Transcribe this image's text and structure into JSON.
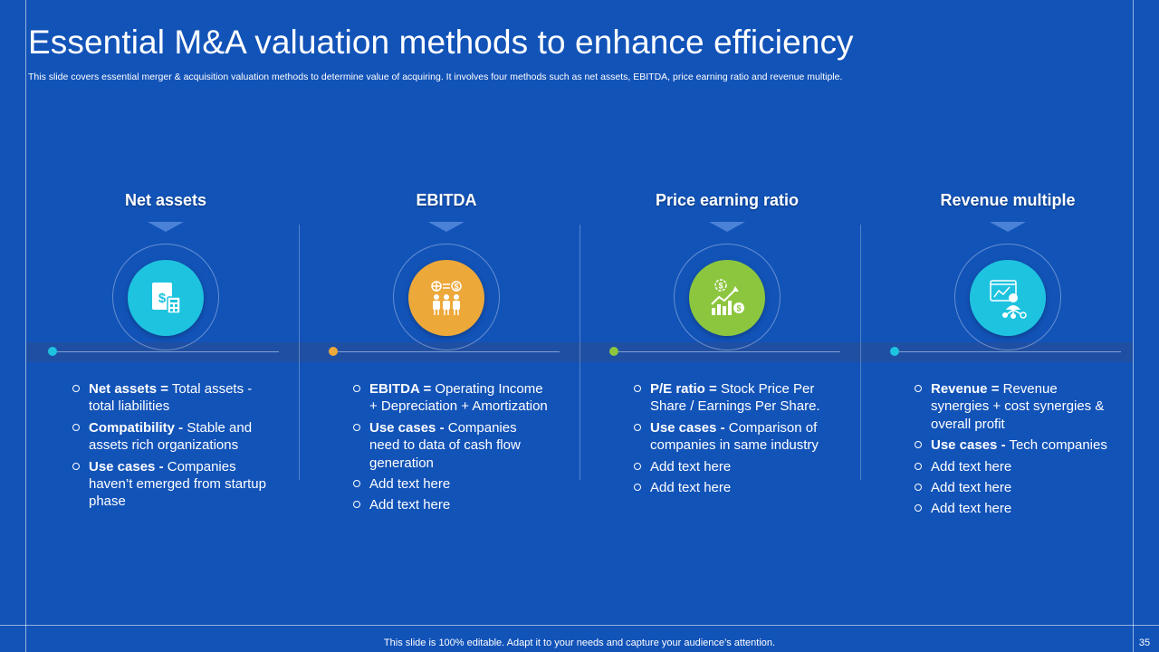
{
  "slide": {
    "title": "Essential M&A valuation methods to enhance efficiency",
    "subtitle": "This slide covers essential merger & acquisition valuation methods to determine value of acquiring. It involves four methods such as net assets, EBITDA, price earning ratio and revenue multiple.",
    "footer": "This slide is 100% editable. Adapt it to your needs and capture your audience’s attention.",
    "page_number": "35"
  },
  "colors": {
    "background": "#1253b8",
    "net_assets": "#1ec3e0",
    "ebitda": "#eda83a",
    "pe_ratio": "#8cc63f",
    "revenue": "#1ec3e0"
  },
  "columns": [
    {
      "heading": "Net assets",
      "icon": "document-calculator-icon",
      "bullets": [
        {
          "bold": "Net assets =",
          "text": " Total assets - total liabilities"
        },
        {
          "bold": "Compatibility -",
          "text": " Stable and assets rich organizations"
        },
        {
          "bold": "Use cases -",
          "text": " Companies haven’t emerged from startup phase"
        }
      ]
    },
    {
      "heading": "EBITDA",
      "icon": "team-finance-icon",
      "bullets": [
        {
          "bold": "EBITDA =",
          "text": " Operating Income + Depreciation + Amortization"
        },
        {
          "bold": "Use cases -",
          "text": " Companies need to data of cash flow generation"
        },
        {
          "bold": "",
          "text": "Add text here"
        },
        {
          "bold": "",
          "text": "Add text here"
        }
      ]
    },
    {
      "heading": "Price earning ratio",
      "icon": "growth-chart-icon",
      "bullets": [
        {
          "bold": "P/E ratio =",
          "text": " Stock Price Per Share / Earnings Per Share."
        },
        {
          "bold": "Use cases -",
          "text": " Comparison of companies in same industry"
        },
        {
          "bold": "",
          "text": "Add text here"
        },
        {
          "bold": "",
          "text": "Add text here"
        }
      ]
    },
    {
      "heading": "Revenue multiple",
      "icon": "analytics-user-icon",
      "bullets": [
        {
          "bold": "Revenue =",
          "text": " Revenue synergies + cost synergies & overall profit"
        },
        {
          "bold": "Use cases -",
          "text": " Tech companies"
        },
        {
          "bold": "",
          "text": "Add text here"
        },
        {
          "bold": "",
          "text": "Add text here"
        },
        {
          "bold": "",
          "text": "Add text here"
        }
      ]
    }
  ]
}
